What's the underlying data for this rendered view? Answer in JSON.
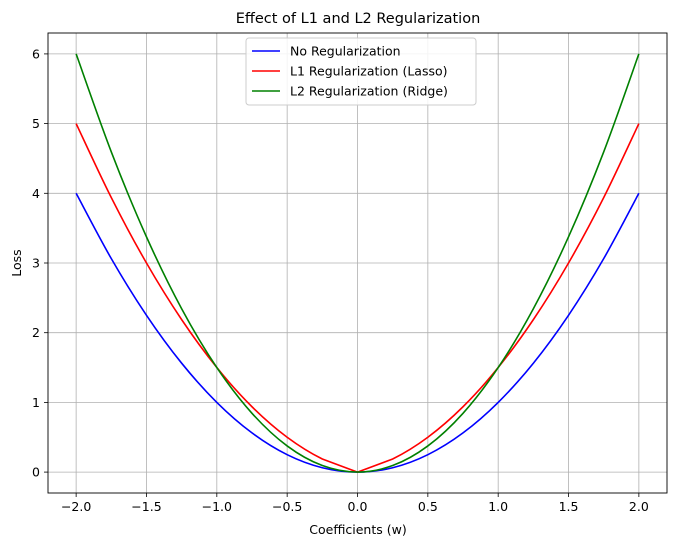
{
  "chart_data": {
    "type": "line",
    "title": "Effect of L1 and L2 Regularization",
    "xlabel": "Coefficients (w)",
    "ylabel": "Loss",
    "xlim": [
      -2.2,
      2.2
    ],
    "ylim": [
      -0.3,
      6.3
    ],
    "xticks": [
      -2.0,
      -1.5,
      -1.0,
      -0.5,
      0.0,
      0.5,
      1.0,
      1.5,
      2.0
    ],
    "xtick_labels": [
      "−2.0",
      "−1.5",
      "−1.0",
      "−0.5",
      "0.0",
      "0.5",
      "1.0",
      "1.5",
      "2.0"
    ],
    "yticks": [
      0,
      1,
      2,
      3,
      4,
      5,
      6
    ],
    "ytick_labels": [
      "0",
      "1",
      "2",
      "3",
      "4",
      "5",
      "6"
    ],
    "grid": true,
    "legend_position": "top-center",
    "x": [
      -2.0,
      -1.75,
      -1.5,
      -1.25,
      -1.0,
      -0.75,
      -0.5,
      -0.25,
      0.0,
      0.25,
      0.5,
      0.75,
      1.0,
      1.25,
      1.5,
      1.75,
      2.0
    ],
    "series": [
      {
        "name": "No Regularization",
        "color": "#0000ff",
        "values": [
          4.0,
          3.0625,
          2.25,
          1.5625,
          1.0,
          0.5625,
          0.25,
          0.0625,
          0.0,
          0.0625,
          0.25,
          0.5625,
          1.0,
          1.5625,
          2.25,
          3.0625,
          4.0
        ]
      },
      {
        "name": "L1 Regularization (Lasso)",
        "color": "#ff0000",
        "values": [
          5.0,
          3.9375,
          3.0,
          2.1875,
          1.5,
          0.9375,
          0.5,
          0.1875,
          0.0,
          0.1875,
          0.5,
          0.9375,
          1.5,
          2.1875,
          3.0,
          3.9375,
          5.0
        ]
      },
      {
        "name": "L2 Regularization (Ridge)",
        "color": "#008000",
        "values": [
          6.0,
          4.59375,
          3.375,
          2.34375,
          1.5,
          0.84375,
          0.375,
          0.09375,
          0.0,
          0.09375,
          0.375,
          0.84375,
          1.5,
          2.34375,
          3.375,
          4.59375,
          6.0
        ]
      }
    ]
  }
}
